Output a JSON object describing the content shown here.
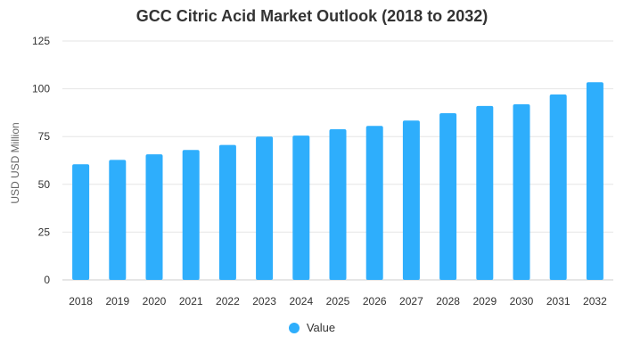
{
  "chart_data": {
    "type": "bar",
    "title": "GCC Citric Acid Market Outlook (2018 to 2032)",
    "xlabel": "",
    "ylabel": "USD USD Million",
    "categories": [
      "2018",
      "2019",
      "2020",
      "2021",
      "2022",
      "2023",
      "2024",
      "2025",
      "2026",
      "2027",
      "2028",
      "2029",
      "2030",
      "2031",
      "2032"
    ],
    "series": [
      {
        "name": "Value",
        "values": [
          60.5,
          62.8,
          65.7,
          68.0,
          70.6,
          75.0,
          75.5,
          78.8,
          80.6,
          83.4,
          87.2,
          91.0,
          91.9,
          97.0,
          103.4
        ],
        "color": "#2eaefc"
      }
    ],
    "ylim": [
      0,
      125
    ],
    "yticks": [
      0,
      25,
      50,
      75,
      100,
      125
    ],
    "grid": true,
    "legend_placement": "bottom"
  },
  "colors": {
    "bar": "#2eaefc",
    "grid": "#e6e6e6",
    "axis_text": "#333333"
  }
}
